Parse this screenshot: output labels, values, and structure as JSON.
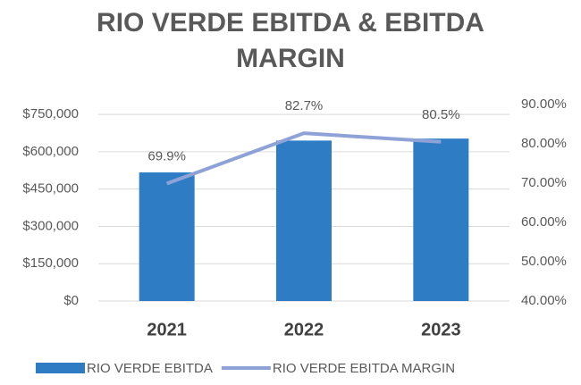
{
  "chart_data": {
    "type": "bar-line",
    "title": "RIO VERDE EBITDA & EBITDA MARGIN",
    "categories": [
      "2021",
      "2022",
      "2023"
    ],
    "series": [
      {
        "name": "RIO VERDE EBITDA",
        "type": "bar",
        "color": "#2e7dc4",
        "values": [
          517000,
          645000,
          653000
        ]
      },
      {
        "name": "RIO VERDE EBITDA MARGIN",
        "type": "line",
        "axis": "y2",
        "color": "#8fa2d8",
        "values": [
          69.9,
          82.7,
          80.5
        ],
        "value_labels": [
          "69.9%",
          "82.7%",
          "80.5%"
        ]
      }
    ],
    "ylim": [
      0,
      790000
    ],
    "yticks": [
      {
        "value": 0,
        "label": "$0"
      },
      {
        "value": 150000,
        "label": "$150,000"
      },
      {
        "value": 300000,
        "label": "$300,000"
      },
      {
        "value": 450000,
        "label": "$450,000"
      },
      {
        "value": 600000,
        "label": "$600,000"
      },
      {
        "value": 750000,
        "label": "$750,000"
      }
    ],
    "y2lim": [
      40,
      90
    ],
    "y2ticks": [
      {
        "value": 40,
        "label": "40.00%"
      },
      {
        "value": 50,
        "label": "50.00%"
      },
      {
        "value": 60,
        "label": "60.00%"
      },
      {
        "value": 70,
        "label": "70.00%"
      },
      {
        "value": 80,
        "label": "80.00%"
      },
      {
        "value": 90,
        "label": "90.00%"
      }
    ],
    "legend": "bottom"
  }
}
